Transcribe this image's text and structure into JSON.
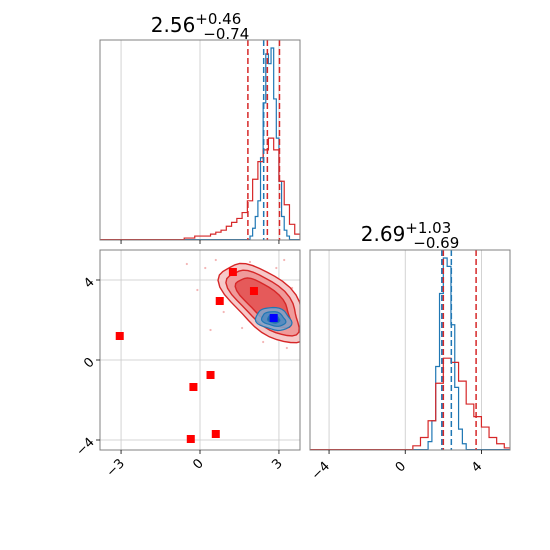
{
  "chart_data": [
    {
      "type": "histogram",
      "panel": "marginal-param-1",
      "title": {
        "value": "2.56",
        "plus": "+0.46",
        "minus": "−0.74"
      },
      "xlim": [
        -3.8,
        3.8
      ],
      "xticks": [
        -3,
        0,
        3
      ],
      "grid": true,
      "series": [
        {
          "color": "#1f77b4",
          "bins": [
            1.9,
            2.0,
            2.1,
            2.2,
            2.3,
            2.4,
            2.5,
            2.6,
            2.7,
            2.8,
            2.9,
            3.0,
            3.1,
            3.2,
            3.3,
            3.4
          ],
          "counts": [
            2,
            6,
            12,
            20,
            42,
            70,
            95,
            90,
            98,
            72,
            52,
            30,
            12,
            5,
            2
          ]
        },
        {
          "color": "#d62728",
          "bins": [
            -0.6,
            -0.4,
            -0.2,
            0.0,
            0.2,
            0.4,
            0.6,
            0.8,
            1.0,
            1.2,
            1.4,
            1.6,
            1.8,
            2.0,
            2.2,
            2.4,
            2.6,
            2.8,
            3.0,
            3.2,
            3.4,
            3.6,
            3.8
          ],
          "counts": [
            1,
            1,
            2,
            2,
            2,
            3,
            4,
            5,
            7,
            9,
            11,
            14,
            20,
            31,
            40,
            46,
            52,
            46,
            30,
            18,
            8,
            3
          ]
        }
      ],
      "quantiles": [
        {
          "color": "#d62728",
          "values": [
            1.82,
            2.56,
            3.02
          ]
        },
        {
          "color": "#1f77b4",
          "values": [
            2.42
          ]
        }
      ]
    },
    {
      "type": "histogram",
      "panel": "marginal-param-2",
      "title": {
        "value": "2.69",
        "plus": "+1.03",
        "minus": "−0.69"
      },
      "xlim": [
        -5,
        5.5
      ],
      "xticks": [
        -4,
        0,
        4
      ],
      "grid": true,
      "series": [
        {
          "color": "#1f77b4",
          "bins": [
            1.2,
            1.4,
            1.6,
            1.8,
            2.0,
            2.2,
            2.4,
            2.6,
            2.8,
            3.0,
            3.2
          ],
          "counts": [
            4,
            14,
            40,
            75,
            92,
            88,
            60,
            30,
            10,
            3
          ]
        },
        {
          "color": "#d62728",
          "bins": [
            0.4,
            0.8,
            1.2,
            1.6,
            2.0,
            2.4,
            2.8,
            3.2,
            3.6,
            4.0,
            4.4,
            4.8,
            5.2,
            5.6
          ],
          "counts": [
            2,
            6,
            14,
            32,
            44,
            42,
            33,
            22,
            16,
            11,
            6,
            3,
            1
          ]
        }
      ],
      "quantiles": [
        {
          "color": "#d62728",
          "values": [
            2.0,
            3.72
          ]
        },
        {
          "color": "#1f77b4",
          "values": [
            1.92,
            2.42
          ]
        }
      ]
    },
    {
      "type": "contour",
      "panel": "joint-param-1-vs-param-2",
      "xlim": [
        -3.8,
        3.8
      ],
      "ylim": [
        -4.5,
        5.5
      ],
      "xticks": [
        -3,
        0,
        3
      ],
      "yticks": [
        -4,
        0,
        4
      ],
      "grid": true,
      "contours": [
        {
          "color": "#d62728",
          "levels": 3,
          "centers": [
            [
              2.2,
              3.4
            ],
            [
              2.9,
              2.0
            ]
          ]
        },
        {
          "color": "#1f77b4",
          "levels": 3,
          "centers": [
            [
              2.75,
              2.05
            ]
          ]
        }
      ],
      "markers": [
        {
          "color": "#ff0000",
          "shape": "square",
          "points": [
            [
              -3.05,
              1.2
            ],
            [
              1.25,
              4.4
            ],
            [
              0.75,
              2.95
            ],
            [
              2.05,
              3.45
            ],
            [
              -0.25,
              -1.35
            ],
            [
              0.4,
              -0.75
            ],
            [
              -0.35,
              -3.95
            ],
            [
              0.6,
              -3.7
            ]
          ]
        },
        {
          "color": "#0000ff",
          "shape": "square",
          "points": [
            [
              2.8,
              2.1
            ]
          ]
        }
      ]
    }
  ]
}
